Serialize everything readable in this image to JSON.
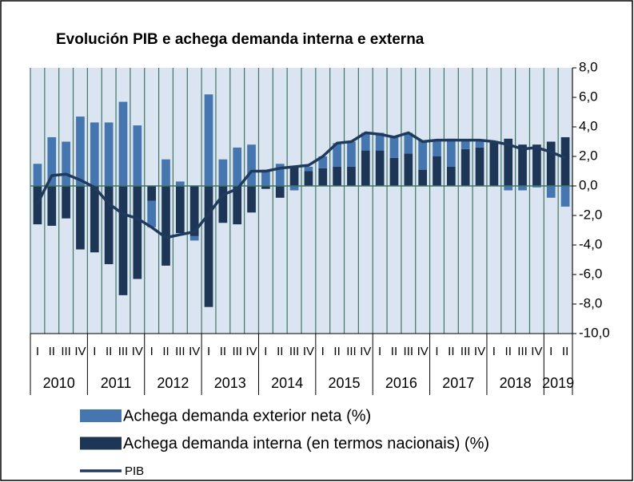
{
  "chart_data": {
    "type": "bar",
    "title": "Evolución  PIB e achega demanda interna e externa",
    "categories": [
      "I",
      "II",
      "III",
      "IV",
      "I",
      "II",
      "III",
      "IV",
      "I",
      "II",
      "III",
      "IV",
      "I",
      "II",
      "III",
      "IV",
      "I",
      "II",
      "III",
      "IV",
      "I",
      "II",
      "III",
      "IV",
      "I",
      "II",
      "III",
      "IV",
      "I",
      "II",
      "III",
      "IV",
      "I",
      "II",
      "III",
      "IV",
      "I",
      "II"
    ],
    "years": [
      "2010",
      null,
      null,
      null,
      "2011",
      null,
      null,
      null,
      "2012",
      null,
      null,
      null,
      "2013",
      null,
      null,
      null,
      "2014",
      null,
      null,
      null,
      "2015",
      null,
      null,
      null,
      "2016",
      null,
      null,
      null,
      "2017",
      null,
      null,
      null,
      "2018",
      null,
      null,
      null,
      "2019",
      null
    ],
    "series": [
      {
        "name": "Achega demanda exterior neta (%)",
        "type": "bar",
        "color": "#4676b0",
        "values": [
          1.5,
          3.3,
          3.0,
          4.7,
          4.3,
          4.3,
          5.7,
          4.1,
          -1.8,
          1.8,
          0.3,
          -0.3,
          6.2,
          1.8,
          2.6,
          2.8,
          1.1,
          1.5,
          -0.3,
          0.3,
          0.8,
          1.6,
          1.7,
          1.2,
          1.2,
          1.5,
          1.4,
          2.0,
          1.1,
          1.9,
          0.6,
          0.5,
          0.0,
          -0.3,
          -0.3,
          -0.1,
          -0.8,
          -1.4
        ]
      },
      {
        "name": "Achega demanda interna (en termos nacionais) (%)",
        "type": "bar",
        "color": "#1e3656",
        "values": [
          -2.6,
          -2.7,
          -2.2,
          -4.3,
          -4.5,
          -5.3,
          -7.4,
          -6.3,
          -1.0,
          -5.4,
          -3.2,
          -3.4,
          -8.2,
          -2.5,
          -2.6,
          -1.8,
          -0.2,
          -0.8,
          1.3,
          1.0,
          1.2,
          1.3,
          1.3,
          2.4,
          2.4,
          1.9,
          2.2,
          1.1,
          2.0,
          1.3,
          2.5,
          2.6,
          3.0,
          3.2,
          2.8,
          2.8,
          3.0,
          3.3
        ]
      },
      {
        "name": "PIB",
        "type": "line",
        "color": "#203a5e",
        "values": [
          -1.2,
          0.7,
          0.8,
          0.4,
          -0.1,
          -1.2,
          -1.9,
          -2.2,
          -2.8,
          -3.5,
          -3.3,
          -3.1,
          -1.9,
          -0.6,
          -0.2,
          1.0,
          1.0,
          1.2,
          1.3,
          1.4,
          2.0,
          2.9,
          3.0,
          3.6,
          3.5,
          3.3,
          3.6,
          3.0,
          3.1,
          3.1,
          3.1,
          3.1,
          3.0,
          2.8,
          2.5,
          2.6,
          2.3,
          1.9
        ]
      }
    ],
    "ylim": [
      -10,
      8
    ],
    "yticks": [
      {
        "value": 8,
        "label": "8,0"
      },
      {
        "value": 6,
        "label": "6,0"
      },
      {
        "value": 4,
        "label": "4,0"
      },
      {
        "value": 2,
        "label": "2,0"
      },
      {
        "value": 0,
        "label": "0,0"
      },
      {
        "value": -2,
        "label": "-2,0"
      },
      {
        "value": -4,
        "label": "-4,0"
      },
      {
        "value": -6,
        "label": "-6,0"
      },
      {
        "value": -8,
        "label": "-8,0"
      },
      {
        "value": -10,
        "label": "-10,0"
      }
    ],
    "grid": true
  }
}
